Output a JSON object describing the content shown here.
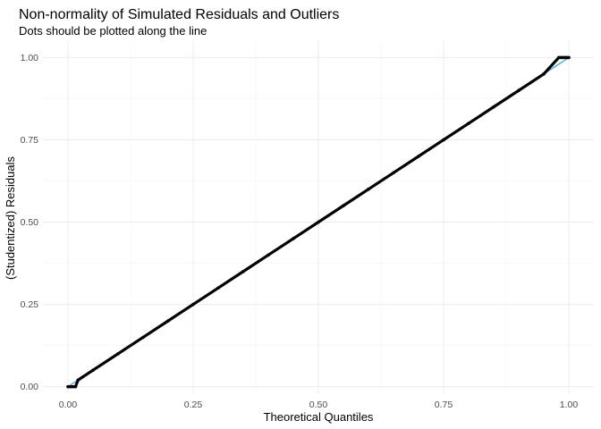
{
  "chart_data": {
    "type": "scatter",
    "title": "Non-normality of Simulated Residuals and Outliers",
    "subtitle": "Dots should be plotted along the line",
    "xlabel": "Theoretical Quantiles",
    "ylabel": "(Studentized) Residuals",
    "xlim": [
      -0.05,
      1.05
    ],
    "ylim": [
      -0.02,
      1.05
    ],
    "x_ticks": [
      0.0,
      0.25,
      0.5,
      0.75,
      1.0
    ],
    "x_tick_labels": [
      "0.00",
      "0.25",
      "0.50",
      "0.75",
      "1.00"
    ],
    "y_ticks": [
      0.0,
      0.25,
      0.5,
      0.75,
      1.0
    ],
    "y_tick_labels": [
      "0.00",
      "0.25",
      "0.50",
      "0.75",
      "1.00"
    ],
    "grid": true,
    "reference_line": {
      "x": [
        0.0,
        1.0
      ],
      "y": [
        0.0,
        1.0
      ],
      "color": "#56B4E9"
    },
    "series": [
      {
        "color": "#000000",
        "x": [
          0.0,
          0.005,
          0.01,
          0.015,
          0.02,
          0.05,
          0.1,
          0.15,
          0.2,
          0.25,
          0.3,
          0.35,
          0.4,
          0.45,
          0.5,
          0.55,
          0.6,
          0.65,
          0.7,
          0.75,
          0.8,
          0.85,
          0.9,
          0.95,
          0.98,
          0.985,
          0.99,
          0.995,
          1.0
        ],
        "y": [
          0.0,
          0.0,
          0.0,
          0.0,
          0.02,
          0.05,
          0.1,
          0.15,
          0.2,
          0.25,
          0.3,
          0.35,
          0.4,
          0.45,
          0.5,
          0.55,
          0.6,
          0.65,
          0.7,
          0.75,
          0.8,
          0.85,
          0.9,
          0.95,
          1.0,
          1.0,
          1.0,
          1.0,
          1.0
        ]
      }
    ]
  },
  "colors": {
    "background": "#ffffff",
    "grid_major": "#ebebeb",
    "grid_minor": "#f4f4f4",
    "points": "#000000",
    "reference_line": "#56B4E9"
  }
}
